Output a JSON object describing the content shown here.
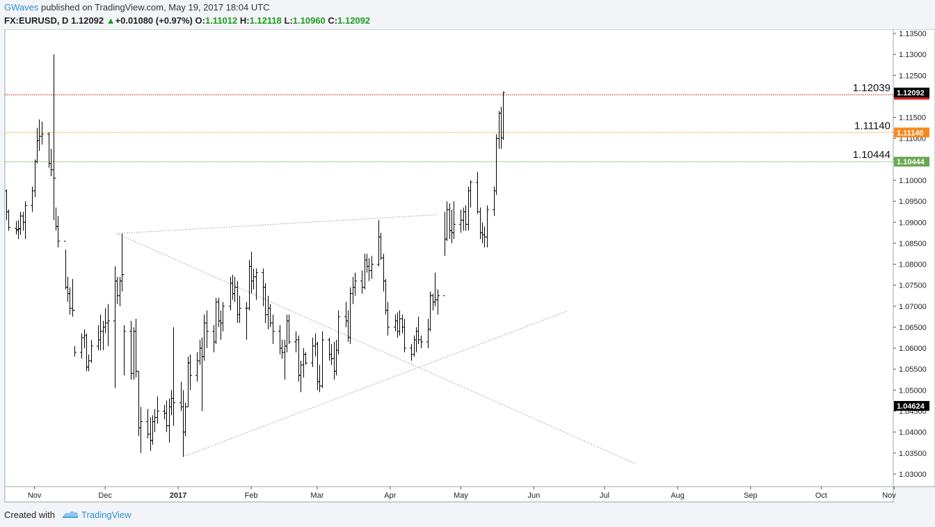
{
  "header": {
    "author": "GWaves",
    "published": " published on TradingView.com, May 19, 2017 18:04 UTC",
    "symbol": "FX:EURUSD, D",
    "last": "1.12092",
    "change": "+0.01080 (+0.97%)",
    "open_label": "O:",
    "open": "1.11012",
    "high_label": "H:",
    "high": "1.12118",
    "low_label": "L:",
    "low": "1.10960",
    "close_label": "C:",
    "close": "1.12092"
  },
  "footer": {
    "created": "Created with",
    "brand": "TradingView"
  },
  "chart_data": {
    "type": "ohlc",
    "colors": {
      "bars": "#000000",
      "up": "#1a9e1a",
      "red_line": "#cc0000",
      "orange_line": "#ff9800",
      "green_line": "#5aa33a",
      "trend": "#999999"
    },
    "ylim": [
      1.027,
      1.136
    ],
    "y_ticks": [
      "1.03000",
      "1.03500",
      "1.04000",
      "1.04500",
      "1.05000",
      "1.05500",
      "1.06000",
      "1.06500",
      "1.07000",
      "1.07500",
      "1.08000",
      "1.08500",
      "1.09000",
      "1.09500",
      "1.10000",
      "1.10500",
      "1.11000",
      "1.11500",
      "1.12000",
      "1.12500",
      "1.13000",
      "1.13500"
    ],
    "x_range": [
      "2016-10-20",
      "2017-10-31"
    ],
    "x_ticks": [
      {
        "date": "2016-11-01",
        "label": "Nov",
        "bold": false
      },
      {
        "date": "2016-12-01",
        "label": "Dec",
        "bold": false
      },
      {
        "date": "2017-01-01",
        "label": "2017",
        "bold": true
      },
      {
        "date": "2017-02-01",
        "label": "Feb",
        "bold": false
      },
      {
        "date": "2017-03-01",
        "label": "Mar",
        "bold": false
      },
      {
        "date": "2017-04-01",
        "label": "Apr",
        "bold": false
      },
      {
        "date": "2017-05-01",
        "label": "May",
        "bold": false
      },
      {
        "date": "2017-06-01",
        "label": "Jun",
        "bold": false
      },
      {
        "date": "2017-07-01",
        "label": "Jul",
        "bold": false
      },
      {
        "date": "2017-08-01",
        "label": "Aug",
        "bold": false
      },
      {
        "date": "2017-09-01",
        "label": "Sep",
        "bold": false
      },
      {
        "date": "2017-10-01",
        "label": "Oct",
        "bold": false
      },
      {
        "date": "2017-11-01",
        "label": "Nov",
        "bold": false
      }
    ],
    "levels": [
      {
        "value": 1.12039,
        "label": "1.12039",
        "tag": "1.12039",
        "color": "#cc0000",
        "tag_color": "#e02020"
      },
      {
        "value": 1.1114,
        "label": "1.11140",
        "tag": "1.11140",
        "color": "#ff9800",
        "tag_color": "#f5891f"
      },
      {
        "value": 1.10444,
        "label": "1.10444",
        "tag": "1.10444",
        "color": "#5aa33a",
        "tag_color": "#6aa84f"
      }
    ],
    "price_tags": [
      {
        "value": 1.12092,
        "text": "1.12092",
        "color": "#000000"
      },
      {
        "value": 1.04624,
        "text": "1.04624",
        "color": "#000000"
      }
    ],
    "trendlines": [
      {
        "from": [
          "2016-12-06",
          1.0873
        ],
        "to": [
          "2017-04-21",
          1.0918
        ]
      },
      {
        "from": [
          "2016-12-06",
          1.0873
        ],
        "to": [
          "2017-07-14",
          1.0325
        ]
      },
      {
        "from": [
          "2017-01-03",
          1.0341
        ],
        "to": [
          "2017-06-15",
          1.0688
        ]
      }
    ],
    "bars": [
      [
        "2016-10-20",
        1.0975,
        1.0978,
        1.0905,
        1.0925
      ],
      [
        "2016-10-21",
        1.0925,
        1.093,
        1.088,
        1.0888
      ],
      [
        "2016-10-24",
        1.0885,
        1.0903,
        1.0871,
        1.0883
      ],
      [
        "2016-10-25",
        1.088,
        1.0905,
        1.086,
        1.0884
      ],
      [
        "2016-10-26",
        1.0885,
        1.0925,
        1.087,
        1.0915
      ],
      [
        "2016-10-27",
        1.0915,
        1.0925,
        1.088,
        1.09
      ],
      [
        "2016-10-28",
        1.09,
        1.095,
        1.086,
        1.094
      ],
      [
        "2016-10-31",
        1.094,
        1.0985,
        1.0925,
        1.0975
      ],
      [
        "2016-11-01",
        1.0975,
        1.105,
        1.096,
        1.1045
      ],
      [
        "2016-11-02",
        1.1045,
        1.1125,
        1.104,
        1.1095
      ],
      [
        "2016-11-03",
        1.1095,
        1.1145,
        1.107,
        1.1105
      ],
      [
        "2016-11-04",
        1.1105,
        1.114,
        1.1085,
        1.111
      ],
      [
        "2016-11-07",
        1.111,
        1.1115,
        1.103,
        1.104
      ],
      [
        "2016-11-08",
        1.104,
        1.1075,
        1.101,
        1.1025
      ],
      [
        "2016-11-09",
        1.1025,
        1.13,
        1.0905,
        1.1005
      ],
      [
        "2016-11-10",
        1.1005,
        1.0935,
        1.088,
        1.089
      ],
      [
        "2016-11-11",
        1.089,
        1.0915,
        1.084,
        1.0855
      ],
      [
        "2016-11-14",
        1.0855,
        1.0835,
        1.074,
        1.0745
      ],
      [
        "2016-11-15",
        1.0745,
        1.077,
        1.071,
        1.073
      ],
      [
        "2016-11-16",
        1.073,
        1.0745,
        1.068,
        1.0695
      ],
      [
        "2016-11-17",
        1.0695,
        1.0765,
        1.0675,
        1.069
      ],
      [
        "2016-11-18",
        1.069,
        1.0605,
        1.058,
        1.059
      ],
      [
        "2016-11-21",
        1.059,
        1.0635,
        1.0575,
        1.0625
      ],
      [
        "2016-11-22",
        1.0625,
        1.0645,
        1.06,
        1.063
      ],
      [
        "2016-11-23",
        1.063,
        1.0635,
        1.0545,
        1.0555
      ],
      [
        "2016-11-24",
        1.0555,
        1.0585,
        1.0545,
        1.057
      ],
      [
        "2016-11-25",
        1.057,
        1.062,
        1.0565,
        1.0605
      ],
      [
        "2016-11-28",
        1.0605,
        1.0655,
        1.0595,
        1.062
      ],
      [
        "2016-11-29",
        1.062,
        1.068,
        1.0595,
        1.064
      ],
      [
        "2016-11-30",
        1.064,
        1.0665,
        1.0595,
        1.065
      ],
      [
        "2016-12-01",
        1.065,
        1.0695,
        1.0635,
        1.066
      ],
      [
        "2016-12-02",
        1.066,
        1.0705,
        1.0605,
        1.0665
      ],
      [
        "2016-12-05",
        1.0665,
        1.0795,
        1.0505,
        1.076
      ],
      [
        "2016-12-06",
        1.076,
        1.077,
        1.0705,
        1.0725
      ],
      [
        "2016-12-07",
        1.0725,
        1.077,
        1.07,
        1.076
      ],
      [
        "2016-12-08",
        1.076,
        1.0873,
        1.0735,
        1.0775
      ],
      [
        "2016-12-09",
        1.0775,
        1.0655,
        1.0535,
        1.064
      ],
      [
        "2016-12-12",
        1.064,
        1.0665,
        1.0525,
        1.054
      ],
      [
        "2016-12-13",
        1.054,
        1.065,
        1.0525,
        1.064
      ],
      [
        "2016-12-14",
        1.064,
        1.067,
        1.053,
        1.0545
      ],
      [
        "2016-12-15",
        1.0545,
        1.0545,
        1.039,
        1.041
      ],
      [
        "2016-12-16",
        1.041,
        1.046,
        1.035,
        1.0425
      ],
      [
        "2016-12-19",
        1.0425,
        1.0455,
        1.0385,
        1.0395
      ],
      [
        "2016-12-20",
        1.0395,
        1.0435,
        1.0355,
        1.038
      ],
      [
        "2016-12-21",
        1.038,
        1.044,
        1.037,
        1.0425
      ],
      [
        "2016-12-22",
        1.0425,
        1.0455,
        1.04,
        1.0435
      ],
      [
        "2016-12-23",
        1.0435,
        1.0485,
        1.042,
        1.045
      ],
      [
        "2016-12-26",
        1.045,
        1.0465,
        1.043,
        1.0445
      ],
      [
        "2016-12-27",
        1.0445,
        1.0475,
        1.04,
        1.0415
      ],
      [
        "2016-12-28",
        1.0415,
        1.048,
        1.0375,
        1.046
      ],
      [
        "2016-12-29",
        1.046,
        1.05,
        1.044,
        1.048
      ],
      [
        "2016-12-30",
        1.048,
        1.065,
        1.0415,
        1.047
      ],
      [
        "2017-01-02",
        1.047,
        1.052,
        1.045,
        1.046
      ],
      [
        "2017-01-03",
        1.046,
        1.05,
        1.0341,
        1.04
      ],
      [
        "2017-01-04",
        1.04,
        1.047,
        1.039,
        1.046
      ],
      [
        "2017-01-05",
        1.046,
        1.058,
        1.046,
        1.0565
      ],
      [
        "2017-01-06",
        1.0565,
        1.0585,
        1.05,
        1.0535
      ],
      [
        "2017-01-09",
        1.0535,
        1.059,
        1.052,
        1.057
      ],
      [
        "2017-01-10",
        1.057,
        1.062,
        1.056,
        1.06
      ],
      [
        "2017-01-11",
        1.06,
        1.0625,
        1.045,
        1.058
      ],
      [
        "2017-01-12",
        1.058,
        1.068,
        1.057,
        1.066
      ],
      [
        "2017-01-13",
        1.066,
        1.069,
        1.06,
        1.064
      ],
      [
        "2017-01-16",
        1.064,
        1.0655,
        1.059,
        1.0615
      ],
      [
        "2017-01-17",
        1.0615,
        1.072,
        1.061,
        1.071
      ],
      [
        "2017-01-18",
        1.071,
        1.072,
        1.065,
        1.0665
      ],
      [
        "2017-01-19",
        1.0665,
        1.069,
        1.062,
        1.066
      ],
      [
        "2017-01-20",
        1.066,
        1.071,
        1.064,
        1.07
      ],
      [
        "2017-01-23",
        1.07,
        1.077,
        1.069,
        1.0755
      ],
      [
        "2017-01-24",
        1.0755,
        1.0775,
        1.0715,
        1.073
      ],
      [
        "2017-01-25",
        1.073,
        1.077,
        1.071,
        1.0745
      ],
      [
        "2017-01-26",
        1.0745,
        1.076,
        1.066,
        1.068
      ],
      [
        "2017-01-27",
        1.068,
        1.0725,
        1.066,
        1.0695
      ],
      [
        "2017-01-30",
        1.0695,
        1.071,
        1.062,
        1.0695
      ],
      [
        "2017-01-31",
        1.0695,
        1.081,
        1.069,
        1.0795
      ],
      [
        "2017-02-01",
        1.0795,
        1.083,
        1.073,
        1.076
      ],
      [
        "2017-02-02",
        1.076,
        1.079,
        1.074,
        1.077
      ],
      [
        "2017-02-03",
        1.077,
        1.079,
        1.0715,
        1.078
      ],
      [
        "2017-02-06",
        1.078,
        1.079,
        1.07,
        1.0745
      ],
      [
        "2017-02-07",
        1.0745,
        1.0755,
        1.066,
        1.068
      ],
      [
        "2017-02-08",
        1.068,
        1.0725,
        1.0645,
        1.0695
      ],
      [
        "2017-02-09",
        1.0695,
        1.0705,
        1.065,
        1.066
      ],
      [
        "2017-02-10",
        1.066,
        1.068,
        1.061,
        1.064
      ],
      [
        "2017-02-13",
        1.064,
        1.0655,
        1.0585,
        1.06
      ],
      [
        "2017-02-14",
        1.06,
        1.062,
        1.0575,
        1.059
      ],
      [
        "2017-02-15",
        1.059,
        1.062,
        1.0525,
        1.0605
      ],
      [
        "2017-02-16",
        1.0605,
        1.068,
        1.059,
        1.0665
      ],
      [
        "2017-02-17",
        1.0665,
        1.068,
        1.061,
        1.0615
      ],
      [
        "2017-02-20",
        1.0615,
        1.064,
        1.059,
        1.062
      ],
      [
        "2017-02-21",
        1.062,
        1.063,
        1.052,
        1.0535
      ],
      [
        "2017-02-22",
        1.0535,
        1.057,
        1.0495,
        1.056
      ],
      [
        "2017-02-23",
        1.056,
        1.06,
        1.053,
        1.0585
      ],
      [
        "2017-02-24",
        1.0585,
        1.059,
        1.056,
        1.0565
      ],
      [
        "2017-02-27",
        1.0565,
        1.0625,
        1.0555,
        1.0605
      ],
      [
        "2017-02-28",
        1.0605,
        1.0635,
        1.058,
        1.061
      ],
      [
        "2017-03-01",
        1.061,
        1.0615,
        1.05,
        1.052
      ],
      [
        "2017-03-02",
        1.052,
        1.056,
        1.0495,
        1.051
      ],
      [
        "2017-03-03",
        1.051,
        1.064,
        1.0505,
        1.062
      ],
      [
        "2017-03-06",
        1.062,
        1.0625,
        1.057,
        1.0585
      ],
      [
        "2017-03-07",
        1.0585,
        1.061,
        1.056,
        1.0575
      ],
      [
        "2017-03-08",
        1.0575,
        1.0615,
        1.0525,
        1.0545
      ],
      [
        "2017-03-09",
        1.0545,
        1.062,
        1.0535,
        1.0595
      ],
      [
        "2017-03-10",
        1.0595,
        1.069,
        1.0585,
        1.0675
      ],
      [
        "2017-03-13",
        1.0675,
        1.071,
        1.065,
        1.0665
      ],
      [
        "2017-03-14",
        1.0665,
        1.069,
        1.0615,
        1.0625
      ],
      [
        "2017-03-15",
        1.0625,
        1.0745,
        1.061,
        1.073
      ],
      [
        "2017-03-16",
        1.073,
        1.077,
        1.0705,
        1.0745
      ],
      [
        "2017-03-17",
        1.0745,
        1.078,
        1.0725,
        1.076
      ],
      [
        "2017-03-20",
        1.076,
        1.0785,
        1.073,
        1.0745
      ],
      [
        "2017-03-21",
        1.0745,
        1.0825,
        1.074,
        1.081
      ],
      [
        "2017-03-22",
        1.081,
        1.0825,
        1.078,
        1.0795
      ],
      [
        "2017-03-23",
        1.0795,
        1.0815,
        1.076,
        1.0785
      ],
      [
        "2017-03-24",
        1.0785,
        1.082,
        1.0765,
        1.08
      ],
      [
        "2017-03-27",
        1.08,
        1.0905,
        1.0795,
        1.0865
      ],
      [
        "2017-03-28",
        1.0865,
        1.0875,
        1.081,
        1.0815
      ],
      [
        "2017-03-29",
        1.0815,
        1.0825,
        1.0735,
        1.076
      ],
      [
        "2017-03-30",
        1.076,
        1.0765,
        1.068,
        1.069
      ],
      [
        "2017-03-31",
        1.069,
        1.071,
        1.063,
        1.065
      ],
      [
        "2017-04-03",
        1.065,
        1.068,
        1.064,
        1.0665
      ],
      [
        "2017-04-04",
        1.0665,
        1.0685,
        1.0625,
        1.064
      ],
      [
        "2017-04-05",
        1.064,
        1.069,
        1.063,
        1.067
      ],
      [
        "2017-04-06",
        1.067,
        1.068,
        1.0635,
        1.065
      ],
      [
        "2017-04-07",
        1.065,
        1.067,
        1.059,
        1.06
      ],
      [
        "2017-04-10",
        1.06,
        1.061,
        1.057,
        1.0585
      ],
      [
        "2017-04-11",
        1.0585,
        1.063,
        1.058,
        1.062
      ],
      [
        "2017-04-12",
        1.062,
        1.065,
        1.059,
        1.064
      ],
      [
        "2017-04-13",
        1.064,
        1.0675,
        1.061,
        1.062
      ],
      [
        "2017-04-14",
        1.062,
        1.063,
        1.06,
        1.0615
      ],
      [
        "2017-04-17",
        1.0615,
        1.067,
        1.06,
        1.0645
      ],
      [
        "2017-04-18",
        1.0645,
        1.0735,
        1.064,
        1.0725
      ],
      [
        "2017-04-19",
        1.0725,
        1.073,
        1.069,
        1.071
      ],
      [
        "2017-04-20",
        1.071,
        1.078,
        1.07,
        1.0715
      ],
      [
        "2017-04-21",
        1.0715,
        1.074,
        1.068,
        1.0725
      ],
      [
        "2017-04-24",
        1.0725,
        1.0925,
        1.082,
        1.086
      ],
      [
        "2017-04-25",
        1.086,
        1.095,
        1.0855,
        1.093
      ],
      [
        "2017-04-26",
        1.093,
        1.0945,
        1.086,
        1.088
      ],
      [
        "2017-04-27",
        1.088,
        1.093,
        1.085,
        1.0875
      ],
      [
        "2017-04-28",
        1.0875,
        1.095,
        1.086,
        1.0895
      ],
      [
        "2017-05-01",
        1.0895,
        1.093,
        1.0875,
        1.0905
      ],
      [
        "2017-05-02",
        1.0905,
        1.0935,
        1.088,
        1.0925
      ],
      [
        "2017-05-03",
        1.0925,
        1.094,
        1.088,
        1.0895
      ],
      [
        "2017-05-04",
        1.0895,
        1.0985,
        1.088,
        1.0975
      ],
      [
        "2017-05-05",
        1.0975,
        1.1,
        1.0935,
        1.0995
      ],
      [
        "2017-05-08",
        1.0995,
        1.102,
        1.092,
        1.0925
      ],
      [
        "2017-05-09",
        1.0925,
        1.0935,
        1.086,
        1.0875
      ],
      [
        "2017-05-10",
        1.0875,
        1.09,
        1.085,
        1.087
      ],
      [
        "2017-05-11",
        1.087,
        1.089,
        1.084,
        1.0865
      ],
      [
        "2017-05-12",
        1.0865,
        1.094,
        1.084,
        1.093
      ],
      [
        "2017-05-15",
        1.093,
        1.0985,
        1.0915,
        1.0975
      ],
      [
        "2017-05-16",
        1.0975,
        1.111,
        1.0965,
        1.11
      ],
      [
        "2017-05-17",
        1.11,
        1.1165,
        1.1075,
        1.116
      ],
      [
        "2017-05-18",
        1.116,
        1.1175,
        1.1075,
        1.1101
      ],
      [
        "2017-05-19",
        1.1101,
        1.12118,
        1.1096,
        1.12092
      ]
    ]
  }
}
